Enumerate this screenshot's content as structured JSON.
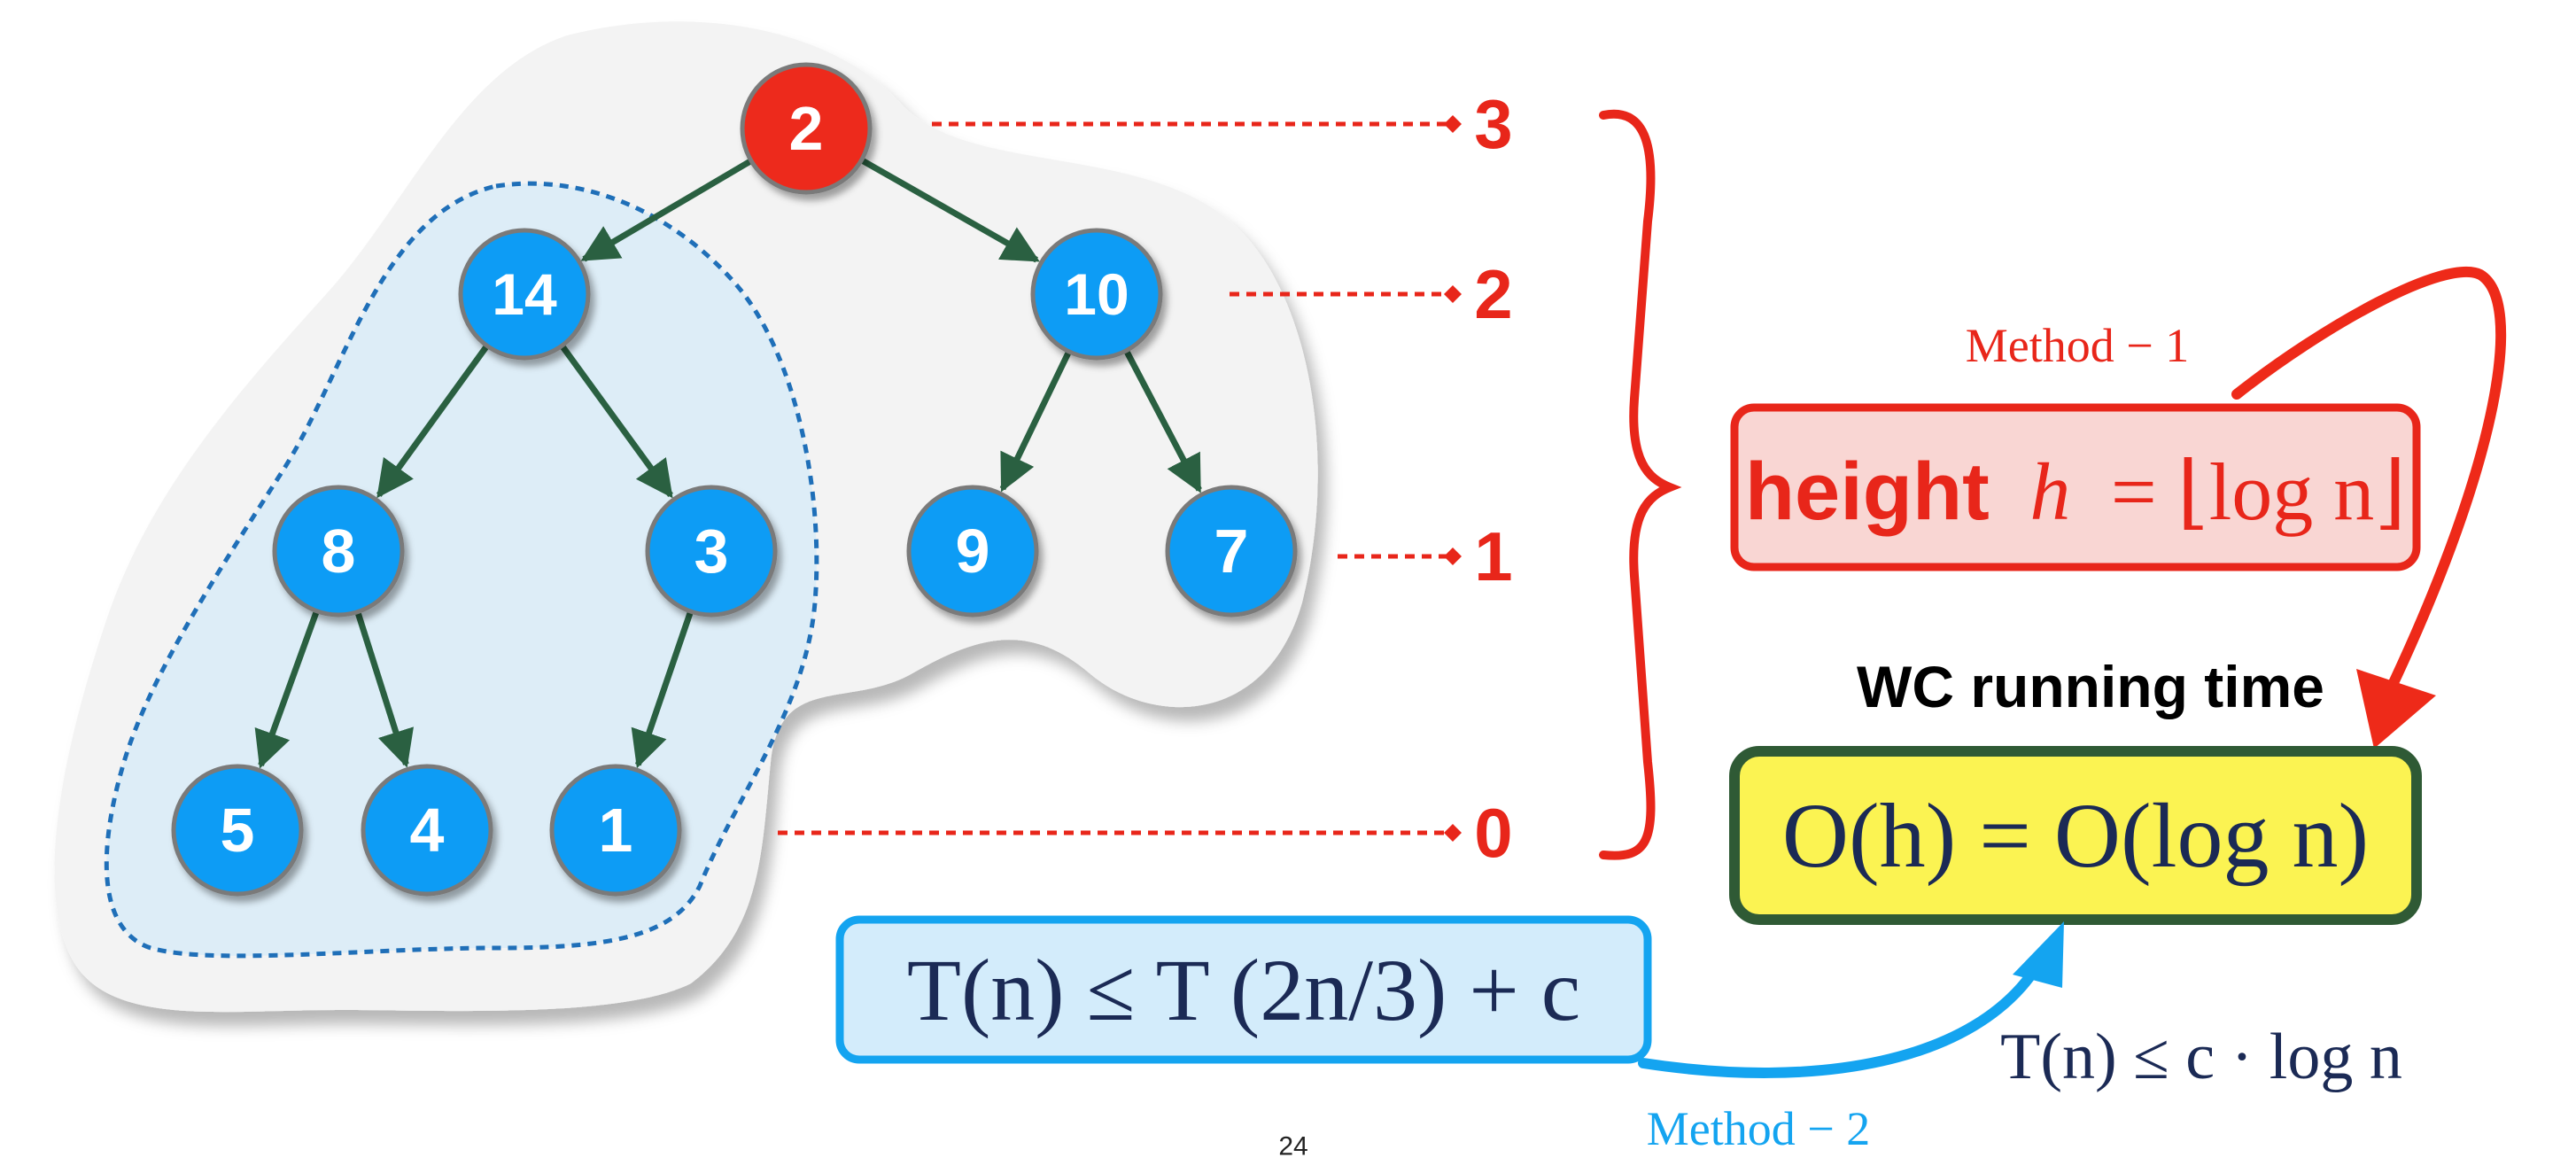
{
  "tree": {
    "nodes": [
      {
        "id": "root",
        "label": "2",
        "highlight": true
      },
      {
        "id": "n14",
        "label": "14"
      },
      {
        "id": "n10",
        "label": "10"
      },
      {
        "id": "n8",
        "label": "8"
      },
      {
        "id": "n3",
        "label": "3"
      },
      {
        "id": "n9",
        "label": "9"
      },
      {
        "id": "n7",
        "label": "7"
      },
      {
        "id": "n5",
        "label": "5"
      },
      {
        "id": "n4",
        "label": "4"
      },
      {
        "id": "n1",
        "label": "1"
      }
    ],
    "edges": [
      [
        "root",
        "n14"
      ],
      [
        "root",
        "n10"
      ],
      [
        "n14",
        "n8"
      ],
      [
        "n14",
        "n3"
      ],
      [
        "n10",
        "n9"
      ],
      [
        "n10",
        "n7"
      ],
      [
        "n8",
        "n5"
      ],
      [
        "n8",
        "n4"
      ],
      [
        "n3",
        "n1"
      ]
    ]
  },
  "levels": [
    "3",
    "2",
    "1",
    "0"
  ],
  "method1_label": "Method − 1",
  "height_box": {
    "word": "height",
    "formula_lhs": "h",
    "formula_rhs": "log n"
  },
  "wc_heading": "WC running time",
  "wc_formula": {
    "left": "O(h)",
    "right": "O(log n)"
  },
  "recurrence": {
    "lhs": "T(n)",
    "rhs": "T (2n/3) + c"
  },
  "bound": {
    "lhs": "T(n)",
    "rhs": "c · log n"
  },
  "method2_label": "Method − 2",
  "page_number": "24",
  "colors": {
    "node": "#0a9cf5",
    "root": "#ed2b1a",
    "edge": "#2a6041",
    "red": "#e8261a",
    "blue_arrow": "#14a4f0",
    "navy": "#1b2a55",
    "yellow": "#fbf352",
    "green_border": "#2f5a35",
    "pink": "#f9d6d3",
    "lightblue": "#d3ecfb"
  }
}
